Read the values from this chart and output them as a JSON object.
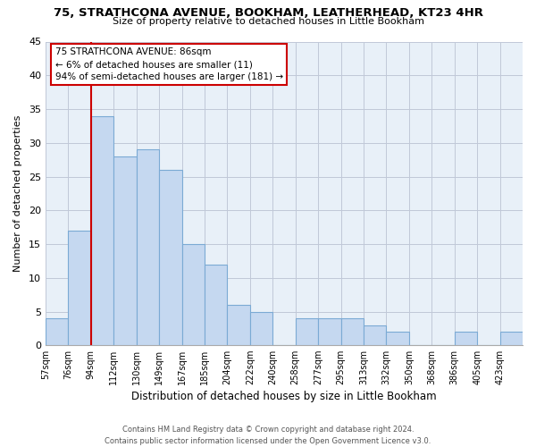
{
  "title1": "75, STRATHCONA AVENUE, BOOKHAM, LEATHERHEAD, KT23 4HR",
  "title2": "Size of property relative to detached houses in Little Bookham",
  "xlabel": "Distribution of detached houses by size in Little Bookham",
  "ylabel": "Number of detached properties",
  "bin_labels": [
    "57sqm",
    "76sqm",
    "94sqm",
    "112sqm",
    "130sqm",
    "149sqm",
    "167sqm",
    "185sqm",
    "204sqm",
    "222sqm",
    "240sqm",
    "258sqm",
    "277sqm",
    "295sqm",
    "313sqm",
    "332sqm",
    "350sqm",
    "368sqm",
    "386sqm",
    "405sqm",
    "423sqm"
  ],
  "bar_heights": [
    4,
    17,
    34,
    28,
    29,
    26,
    15,
    12,
    6,
    5,
    0,
    4,
    4,
    4,
    3,
    2,
    0,
    0,
    2,
    0,
    2
  ],
  "bar_color": "#c5d8f0",
  "bar_edge_color": "#7baad4",
  "vline_x_index": 2,
  "vline_color": "#cc0000",
  "ylim": [
    0,
    45
  ],
  "yticks": [
    0,
    5,
    10,
    15,
    20,
    25,
    30,
    35,
    40,
    45
  ],
  "annotation_title": "75 STRATHCONA AVENUE: 86sqm",
  "annotation_line1": "← 6% of detached houses are smaller (11)",
  "annotation_line2": "94% of semi-detached houses are larger (181) →",
  "annotation_box_color": "#ffffff",
  "annotation_box_edge": "#cc0000",
  "footer1": "Contains HM Land Registry data © Crown copyright and database right 2024.",
  "footer2": "Contains public sector information licensed under the Open Government Licence v3.0.",
  "background_color": "#ffffff",
  "plot_bg_color": "#e8f0f8",
  "grid_color": "#c0c8d8"
}
